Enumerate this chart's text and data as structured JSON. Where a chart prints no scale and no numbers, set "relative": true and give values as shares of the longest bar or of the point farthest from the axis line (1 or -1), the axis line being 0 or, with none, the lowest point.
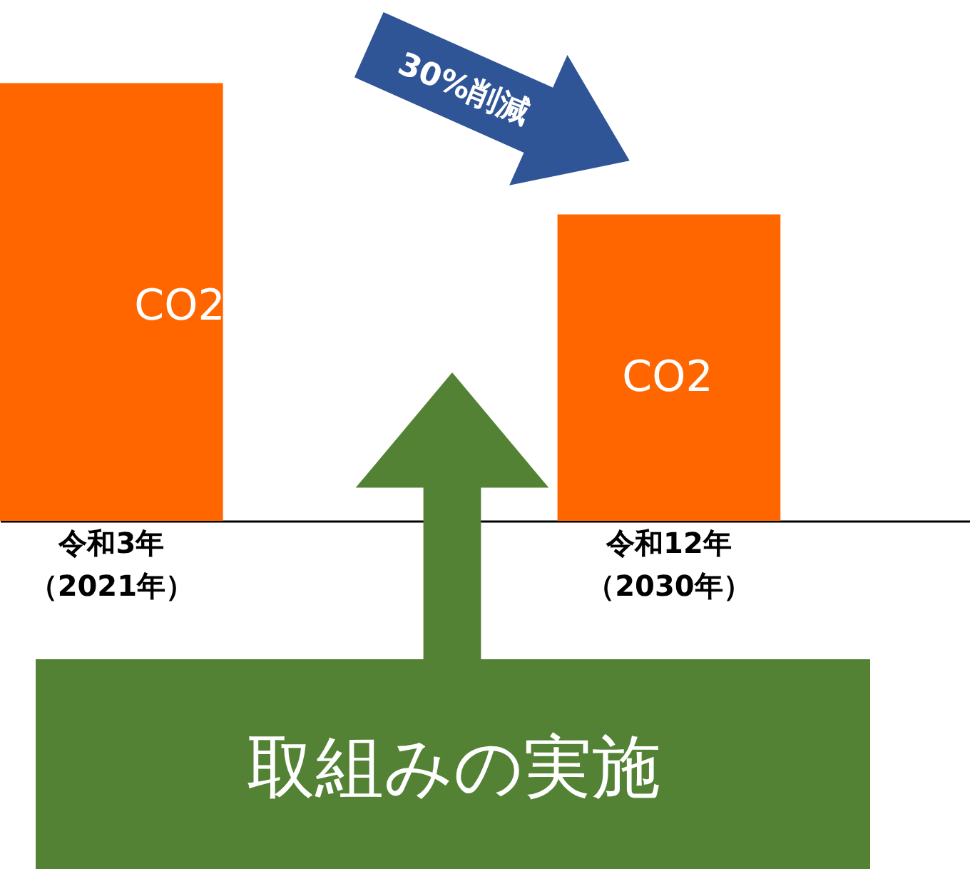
{
  "chart_data": {
    "type": "bar",
    "relative": true,
    "categories": [
      "令和3年（2021年）",
      "令和12年（2030年）"
    ],
    "values": [
      1,
      0.7
    ],
    "color": "#ff6600",
    "annotations": [
      "CO2",
      "CO2",
      "30%削減",
      "取組みの実施"
    ]
  }
}
